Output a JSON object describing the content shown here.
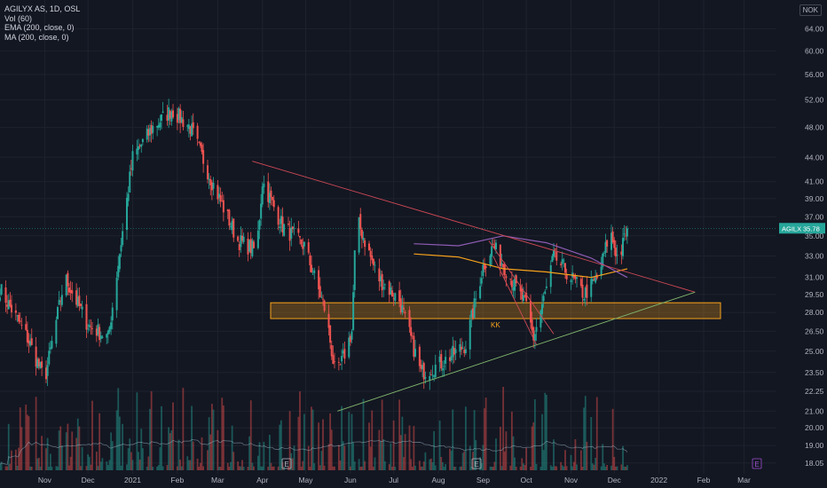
{
  "legend": {
    "title": "AGILYX AS, 1D, OSL",
    "vol": "Vol (60)",
    "ema": "EMA (200, close, 0)",
    "ma": "MA (200, close, 0)"
  },
  "currency": "NOK",
  "price_tag": {
    "symbol": "AGILX",
    "value": "35.78"
  },
  "zone_label": "KK",
  "event_markers": [
    "E",
    "E",
    "E"
  ],
  "colors": {
    "background": "#131722",
    "up": "#26a69a",
    "down": "#ef5350",
    "ema": "#f7a21b",
    "ma": "#8e5cb5",
    "zone": "#f7a21b",
    "resistance": "#d14a56",
    "support": "#7fb36b"
  },
  "chart_data": {
    "type": "candlestick",
    "ylabel_ticks": [
      "64.00",
      "60.00",
      "56.00",
      "52.00",
      "48.00",
      "44.00",
      "41.00",
      "39.00",
      "37.00",
      "35.00",
      "33.00",
      "31.00",
      "29.50",
      "28.00",
      "26.50",
      "25.00",
      "23.50",
      "22.25",
      "21.00",
      "20.00",
      "19.00",
      "18.05"
    ],
    "xlabel_ticks": [
      "Nov",
      "Dec",
      "2021",
      "Feb",
      "Mar",
      "Apr",
      "May",
      "Jun",
      "Jul",
      "Aug",
      "Sep",
      "Oct",
      "Nov",
      "Dec",
      "2022",
      "Feb",
      "Mar"
    ],
    "y_scale": "log",
    "last_price": 35.78,
    "zone": {
      "from": 27.5,
      "to": 28.8
    },
    "anchors": [
      {
        "date": "2020-10-01",
        "price": 30.0
      },
      {
        "date": "2020-10-20",
        "price": 26.0
      },
      {
        "date": "2020-11-01",
        "price": 23.0
      },
      {
        "date": "2020-11-15",
        "price": 31.0
      },
      {
        "date": "2020-12-01",
        "price": 27.0
      },
      {
        "date": "2020-12-15",
        "price": 26.0
      },
      {
        "date": "2021-01-01",
        "price": 44.0
      },
      {
        "date": "2021-01-15",
        "price": 48.0
      },
      {
        "date": "2021-01-28",
        "price": 50.5
      },
      {
        "date": "2021-02-10",
        "price": 48.0
      },
      {
        "date": "2021-02-25",
        "price": 41.0
      },
      {
        "date": "2021-03-15",
        "price": 34.5
      },
      {
        "date": "2021-03-28",
        "price": 33.5
      },
      {
        "date": "2021-04-01",
        "price": 41.0
      },
      {
        "date": "2021-04-15",
        "price": 36.0
      },
      {
        "date": "2021-04-30",
        "price": 34.0
      },
      {
        "date": "2021-05-15",
        "price": 28.0
      },
      {
        "date": "2021-05-22",
        "price": 23.0
      },
      {
        "date": "2021-06-02",
        "price": 26.5
      },
      {
        "date": "2021-06-05",
        "price": 37.0
      },
      {
        "date": "2021-06-20",
        "price": 31.0
      },
      {
        "date": "2021-07-05",
        "price": 29.0
      },
      {
        "date": "2021-07-20",
        "price": 23.5
      },
      {
        "date": "2021-08-01",
        "price": 24.0
      },
      {
        "date": "2021-08-20",
        "price": 25.5
      },
      {
        "date": "2021-09-01",
        "price": 32.0
      },
      {
        "date": "2021-09-08",
        "price": 34.0
      },
      {
        "date": "2021-09-20",
        "price": 31.0
      },
      {
        "date": "2021-10-01",
        "price": 28.5
      },
      {
        "date": "2021-10-06",
        "price": 26.0
      },
      {
        "date": "2021-10-15",
        "price": 30.0
      },
      {
        "date": "2021-10-20",
        "price": 33.0
      },
      {
        "date": "2021-11-01",
        "price": 31.0
      },
      {
        "date": "2021-11-10",
        "price": 29.5
      },
      {
        "date": "2021-11-20",
        "price": 31.0
      },
      {
        "date": "2021-11-28",
        "price": 35.5
      },
      {
        "date": "2021-12-04",
        "price": 32.5
      },
      {
        "date": "2021-12-10",
        "price": 35.8
      }
    ],
    "ema200": [
      {
        "date": "2021-07-15",
        "price": 33.2
      },
      {
        "date": "2021-08-15",
        "price": 32.9
      },
      {
        "date": "2021-09-15",
        "price": 31.8
      },
      {
        "date": "2021-10-15",
        "price": 31.5
      },
      {
        "date": "2021-11-15",
        "price": 31.0
      },
      {
        "date": "2021-12-10",
        "price": 31.8
      }
    ],
    "ma200": [
      {
        "date": "2021-07-15",
        "price": 34.2
      },
      {
        "date": "2021-08-15",
        "price": 34.0
      },
      {
        "date": "2021-09-15",
        "price": 35.0
      },
      {
        "date": "2021-10-15",
        "price": 34.3
      },
      {
        "date": "2021-11-15",
        "price": 32.8
      },
      {
        "date": "2021-12-10",
        "price": 31.0
      }
    ],
    "trendlines": [
      {
        "name": "resistance",
        "from": {
          "date": "2021-03-25",
          "price": 43.5
        },
        "to": {
          "date": "2022-01-26",
          "price": 29.7
        }
      },
      {
        "name": "support",
        "from": {
          "date": "2021-05-23",
          "price": 21.0
        },
        "to": {
          "date": "2022-01-26",
          "price": 29.7
        }
      },
      {
        "name": "channel-top",
        "from": {
          "date": "2021-09-05",
          "price": 34.5
        },
        "to": {
          "date": "2021-10-20",
          "price": 26.3
        }
      },
      {
        "name": "channel-bottom",
        "from": {
          "date": "2021-09-08",
          "price": 33.0
        },
        "to": {
          "date": "2021-10-08",
          "price": 25.5
        }
      }
    ]
  }
}
